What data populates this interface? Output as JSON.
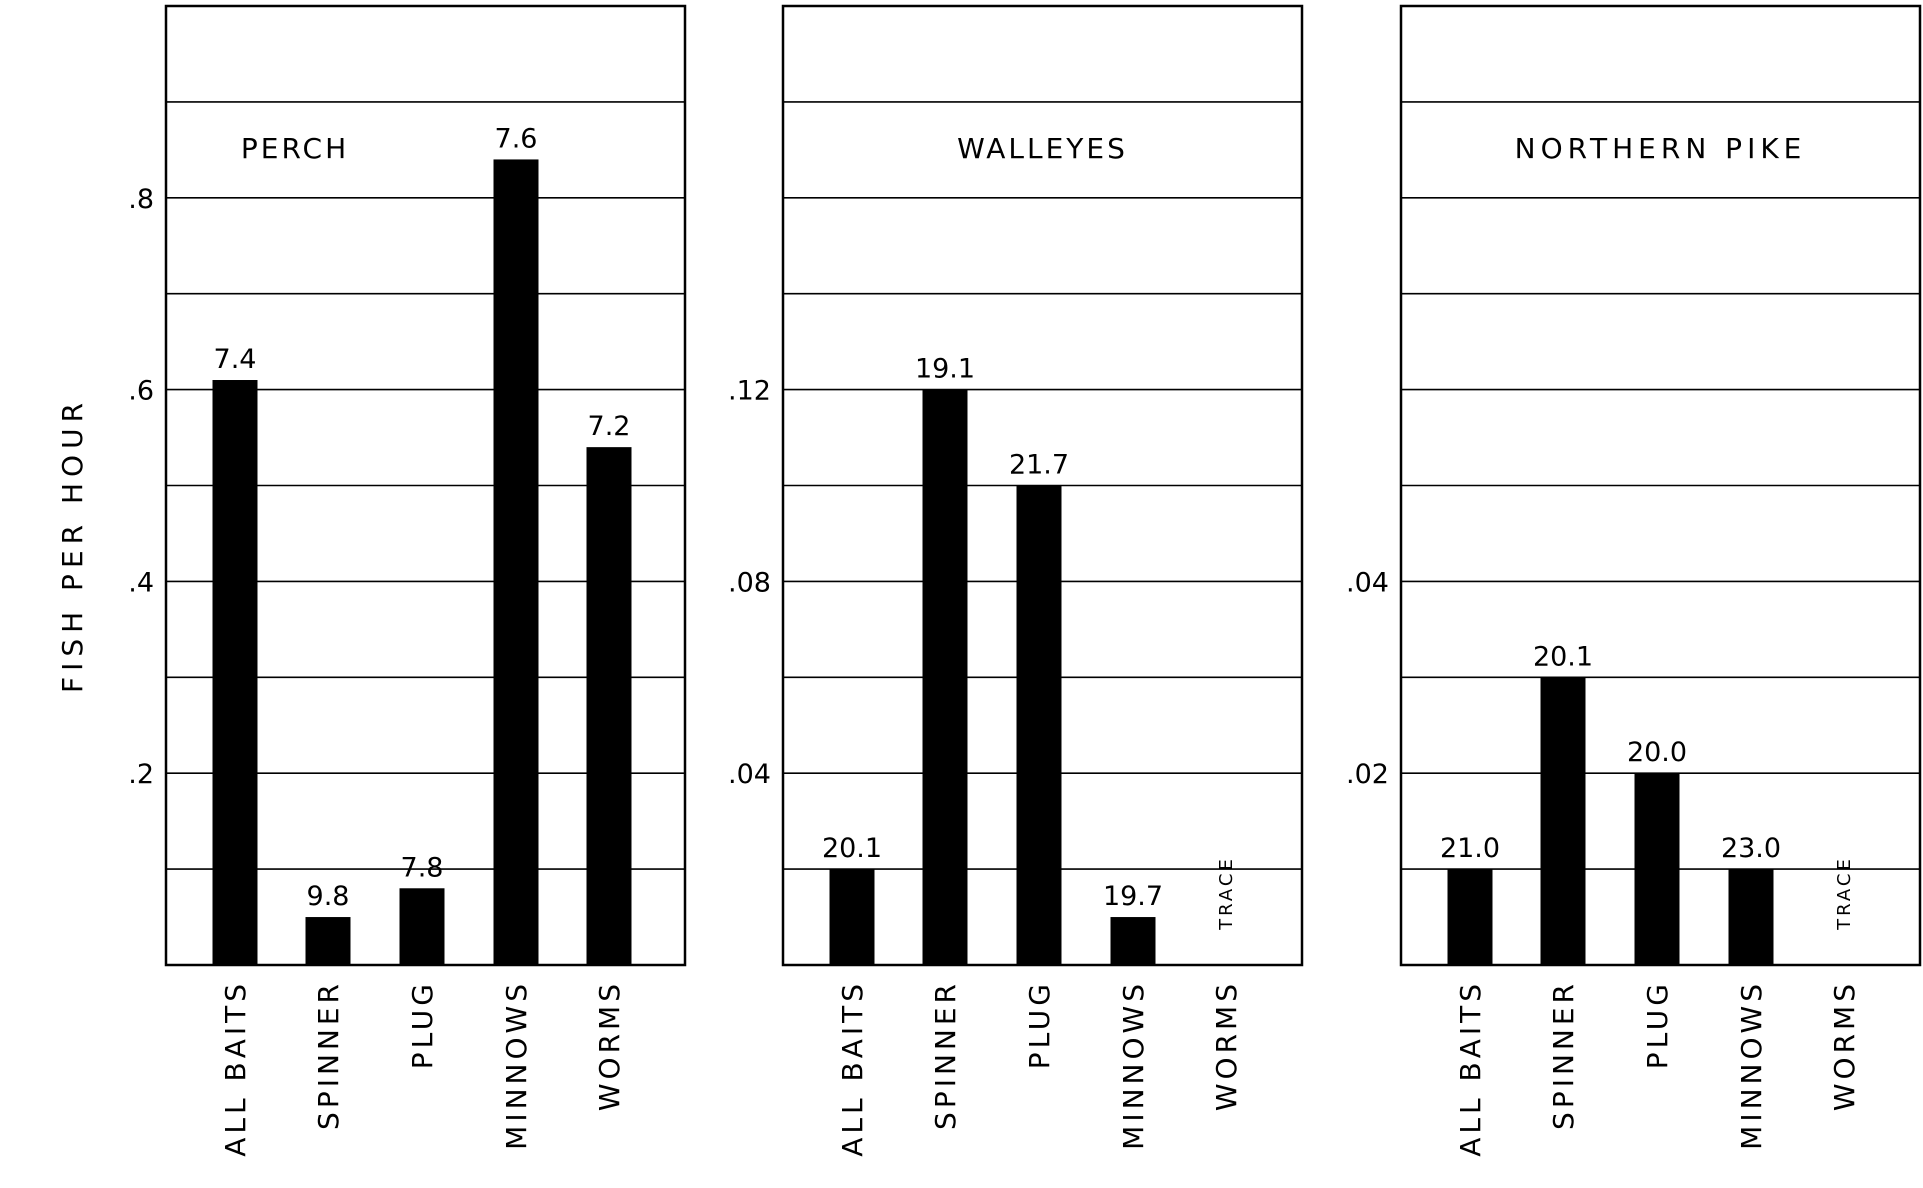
{
  "y_axis_label": "FISH PER HOUR",
  "chart_data": [
    {
      "type": "bar",
      "title": "PERCH",
      "ylabel": "FISH PER HOUR",
      "categories": [
        "ALL BAITS",
        "SPINNER",
        "PLUG",
        "MINNOWS",
        "WORMS"
      ],
      "values": [
        0.61,
        0.05,
        0.08,
        0.84,
        0.54
      ],
      "bar_labels": [
        "7.4",
        "9.8",
        "7.8",
        "7.6",
        "7.2"
      ],
      "trace_categories": [],
      "ylim": [
        0,
        1.0
      ],
      "grid_step": 0.1,
      "yticks": [
        0.2,
        0.4,
        0.6,
        0.8
      ],
      "ytick_labels": [
        ".2",
        ".4",
        ".6",
        ".8"
      ],
      "grid": true
    },
    {
      "type": "bar",
      "title": "WALLEYES",
      "categories": [
        "ALL BAITS",
        "SPINNER",
        "PLUG",
        "MINNOWS",
        "WORMS"
      ],
      "values": [
        0.02,
        0.12,
        0.1,
        0.01,
        null
      ],
      "bar_labels": [
        "20.1",
        "19.1",
        "21.7",
        "19.7",
        ""
      ],
      "trace_categories": [
        "WORMS"
      ],
      "trace_label": "TRACE",
      "ylim": [
        0,
        0.2
      ],
      "grid_step": 0.02,
      "yticks": [
        0.04,
        0.08,
        0.12
      ],
      "ytick_labels": [
        ".04",
        ".08",
        ".12"
      ],
      "grid": true
    },
    {
      "type": "bar",
      "title": "NORTHERN PIKE",
      "categories": [
        "ALL BAITS",
        "SPINNER",
        "PLUG",
        "MINNOWS",
        "WORMS"
      ],
      "values": [
        0.01,
        0.03,
        0.02,
        0.01,
        null
      ],
      "bar_labels": [
        "21.0",
        "20.1",
        "20.0",
        "23.0",
        ""
      ],
      "trace_categories": [
        "WORMS"
      ],
      "trace_label": "TRACE",
      "ylim": [
        0,
        0.1
      ],
      "grid_step": 0.01,
      "yticks": [
        0.02,
        0.04
      ],
      "ytick_labels": [
        ".02",
        ".04"
      ],
      "grid": true
    }
  ]
}
